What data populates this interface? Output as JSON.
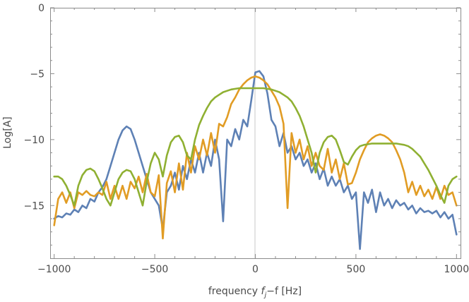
{
  "chart_data": {
    "type": "line",
    "title": "",
    "xlabel": {
      "prefix": "frequency ",
      "var": "f",
      "sub": "j",
      "suffix": "−f [Hz]"
    },
    "ylabel": "Log[A]",
    "xlim": [
      -1020,
      1020
    ],
    "ylim": [
      -19,
      0
    ],
    "xticks": [
      {
        "value": -1000,
        "label": "−1000"
      },
      {
        "value": -500,
        "label": "−500"
      },
      {
        "value": 0,
        "label": "0"
      },
      {
        "value": 500,
        "label": "500"
      },
      {
        "value": 1000,
        "label": "1000"
      }
    ],
    "yticks": [
      {
        "value": 0,
        "label": "0"
      },
      {
        "value": -5,
        "label": "−5"
      },
      {
        "value": -10,
        "label": "−10"
      },
      {
        "value": -15,
        "label": "−15"
      }
    ],
    "grid": false,
    "vertical_reference_line": 0,
    "series": [
      {
        "color": "#5e81b5",
        "x": [
          -1000,
          -980,
          -960,
          -940,
          -920,
          -900,
          -880,
          -860,
          -840,
          -820,
          -800,
          -780,
          -760,
          -740,
          -720,
          -700,
          -680,
          -660,
          -640,
          -620,
          -600,
          -580,
          -560,
          -540,
          -520,
          -500,
          -480,
          -460,
          -440,
          -420,
          -400,
          -380,
          -360,
          -340,
          -320,
          -300,
          -280,
          -260,
          -240,
          -220,
          -200,
          -180,
          -160,
          -140,
          -120,
          -100,
          -80,
          -60,
          -40,
          -20,
          0,
          20,
          40,
          60,
          80,
          100,
          120,
          140,
          160,
          180,
          200,
          220,
          240,
          260,
          280,
          300,
          320,
          340,
          360,
          380,
          400,
          420,
          440,
          460,
          480,
          500,
          520,
          540,
          560,
          580,
          600,
          620,
          640,
          660,
          680,
          700,
          720,
          740,
          760,
          780,
          800,
          820,
          840,
          860,
          880,
          900,
          920,
          940,
          960,
          980,
          1000
        ],
        "y": [
          -16.0,
          -15.8,
          -15.9,
          -15.6,
          -15.7,
          -15.3,
          -15.5,
          -15.0,
          -15.2,
          -14.5,
          -14.7,
          -14.0,
          -13.6,
          -13.0,
          -12.0,
          -11.0,
          -10.0,
          -9.3,
          -9.0,
          -9.2,
          -10.0,
          -11.0,
          -12.0,
          -13.0,
          -14.0,
          -14.5,
          -15.0,
          -16.8,
          -14.0,
          -13.5,
          -12.5,
          -13.8,
          -12.0,
          -13.0,
          -11.5,
          -12.5,
          -11.0,
          -12.5,
          -11.0,
          -12.0,
          -10.0,
          -11.5,
          -16.2,
          -10.0,
          -10.5,
          -9.2,
          -10.0,
          -8.5,
          -9.0,
          -7.0,
          -4.9,
          -4.8,
          -5.2,
          -6.5,
          -8.5,
          -9.0,
          -10.5,
          -9.5,
          -11.0,
          -10.5,
          -11.5,
          -11.0,
          -12.0,
          -11.5,
          -12.5,
          -11.8,
          -13.0,
          -12.2,
          -13.5,
          -12.8,
          -13.5,
          -13.0,
          -14.0,
          -13.5,
          -14.5,
          -14.0,
          -18.3,
          -14.0,
          -14.8,
          -13.8,
          -15.5,
          -14.0,
          -15.0,
          -14.5,
          -15.2,
          -14.6,
          -15.0,
          -14.8,
          -15.3,
          -15.0,
          -15.6,
          -15.2,
          -15.5,
          -15.4,
          -15.6,
          -15.4,
          -15.9,
          -15.5,
          -16.0,
          -15.7,
          -17.2
        ]
      },
      {
        "color": "#e19c24",
        "x": [
          -1000,
          -980,
          -960,
          -940,
          -920,
          -900,
          -880,
          -860,
          -840,
          -820,
          -800,
          -780,
          -760,
          -740,
          -720,
          -700,
          -680,
          -660,
          -640,
          -620,
          -600,
          -580,
          -560,
          -540,
          -520,
          -500,
          -480,
          -460,
          -440,
          -420,
          -400,
          -380,
          -360,
          -340,
          -320,
          -300,
          -280,
          -260,
          -240,
          -220,
          -200,
          -180,
          -160,
          -140,
          -120,
          -100,
          -80,
          -60,
          -40,
          -20,
          0,
          20,
          40,
          60,
          80,
          100,
          120,
          140,
          160,
          180,
          200,
          220,
          240,
          260,
          280,
          300,
          320,
          340,
          360,
          380,
          400,
          420,
          440,
          460,
          480,
          500,
          520,
          540,
          560,
          580,
          600,
          620,
          640,
          660,
          680,
          700,
          720,
          740,
          760,
          780,
          800,
          820,
          840,
          860,
          880,
          900,
          920,
          940,
          960,
          980,
          1000
        ],
        "y": [
          -16.5,
          -14.5,
          -14.0,
          -14.8,
          -14.0,
          -15.2,
          -14.0,
          -14.2,
          -13.9,
          -14.2,
          -14.3,
          -14.0,
          -14.2,
          -13.2,
          -14.5,
          -13.5,
          -14.5,
          -13.5,
          -14.5,
          -13.2,
          -13.7,
          -12.8,
          -14.0,
          -12.6,
          -14.0,
          -14.3,
          -12.7,
          -17.5,
          -13.3,
          -12.4,
          -14.0,
          -11.8,
          -13.8,
          -11.0,
          -12.5,
          -10.5,
          -11.5,
          -10.0,
          -11.2,
          -9.5,
          -11.0,
          -8.8,
          -9.0,
          -8.3,
          -7.3,
          -6.8,
          -6.2,
          -5.8,
          -5.5,
          -5.3,
          -5.2,
          -5.3,
          -5.5,
          -5.8,
          -6.3,
          -6.8,
          -7.5,
          -8.8,
          -15.2,
          -9.5,
          -11.0,
          -10.0,
          -11.5,
          -10.5,
          -12.0,
          -11.0,
          -12.0,
          -12.3,
          -10.7,
          -12.5,
          -11.5,
          -13.0,
          -11.8,
          -13.4,
          -13.3,
          -12.5,
          -11.5,
          -10.8,
          -10.2,
          -9.9,
          -9.7,
          -9.6,
          -9.7,
          -9.9,
          -10.2,
          -10.8,
          -11.5,
          -12.5,
          -14.0,
          -13.2,
          -14.2,
          -13.5,
          -14.3,
          -13.8,
          -14.5,
          -13.6,
          -14.5,
          -13.5,
          -14.2,
          -14.0,
          -15.0
        ]
      },
      {
        "color": "#8fb032",
        "x": [
          -1000,
          -980,
          -960,
          -940,
          -920,
          -900,
          -880,
          -860,
          -840,
          -820,
          -800,
          -780,
          -760,
          -740,
          -720,
          -700,
          -680,
          -660,
          -640,
          -620,
          -600,
          -580,
          -560,
          -540,
          -520,
          -500,
          -480,
          -460,
          -440,
          -420,
          -400,
          -380,
          -360,
          -340,
          -320,
          -300,
          -280,
          -260,
          -240,
          -220,
          -200,
          -180,
          -160,
          -140,
          -120,
          -100,
          -80,
          -60,
          -40,
          -20,
          0,
          20,
          40,
          60,
          80,
          100,
          120,
          140,
          160,
          180,
          200,
          220,
          240,
          260,
          280,
          300,
          320,
          340,
          360,
          380,
          400,
          420,
          440,
          460,
          480,
          500,
          520,
          540,
          560,
          580,
          600,
          620,
          640,
          660,
          680,
          700,
          720,
          740,
          760,
          780,
          800,
          820,
          840,
          860,
          880,
          900,
          920,
          940,
          960,
          980,
          1000
        ],
        "y": [
          -12.8,
          -12.8,
          -13.0,
          -13.5,
          -14.2,
          -15.0,
          -13.5,
          -12.7,
          -12.3,
          -12.2,
          -12.4,
          -13.0,
          -13.7,
          -14.5,
          -15.0,
          -14.0,
          -13.0,
          -12.5,
          -12.3,
          -12.4,
          -13.0,
          -14.0,
          -15.0,
          -13.2,
          -11.8,
          -11.0,
          -11.5,
          -12.8,
          -11.2,
          -10.2,
          -9.8,
          -9.7,
          -10.2,
          -11.2,
          -11.5,
          -10.0,
          -8.9,
          -8.2,
          -7.6,
          -7.1,
          -6.8,
          -6.6,
          -6.4,
          -6.3,
          -6.2,
          -6.15,
          -6.1,
          -6.1,
          -6.1,
          -6.1,
          -6.1,
          -6.1,
          -6.1,
          -6.15,
          -6.2,
          -6.3,
          -6.4,
          -6.6,
          -6.8,
          -7.1,
          -7.6,
          -8.2,
          -9.0,
          -10.0,
          -11.0,
          -12.5,
          -11.0,
          -10.2,
          -9.8,
          -9.7,
          -10.0,
          -10.8,
          -11.7,
          -11.9,
          -11.3,
          -10.8,
          -10.5,
          -10.4,
          -10.35,
          -10.3,
          -10.3,
          -10.3,
          -10.3,
          -10.3,
          -10.3,
          -10.3,
          -10.35,
          -10.4,
          -10.5,
          -10.7,
          -11.0,
          -11.3,
          -11.8,
          -12.3,
          -12.9,
          -13.5,
          -14.2,
          -14.8,
          -13.5,
          -13.0,
          -12.8
        ]
      }
    ]
  }
}
